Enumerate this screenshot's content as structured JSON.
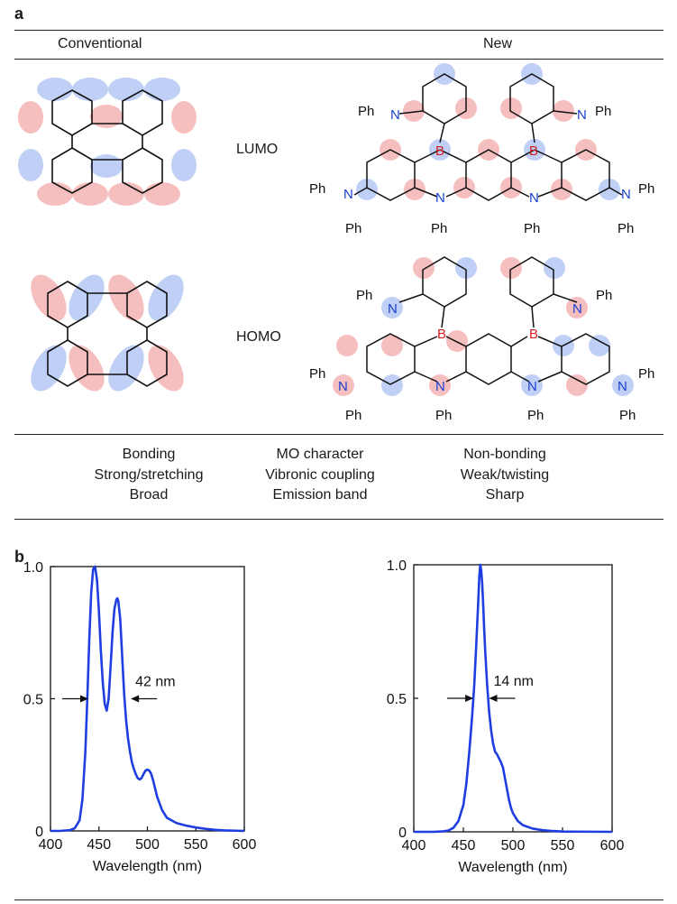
{
  "panel_a": {
    "letter": "a",
    "header_left": "Conventional",
    "header_right": "New",
    "lumo_label": "LUMO",
    "homo_label": "HOMO",
    "atoms": {
      "N": "N",
      "B": "B",
      "Ph": "Ph"
    },
    "conventional_props": [
      "Bonding",
      "Strong/stretching",
      "Broad"
    ],
    "property_names": [
      "MO character",
      "Vibronic coupling",
      "Emission band"
    ],
    "new_props": [
      "Non-bonding",
      "Weak/twisting",
      "Sharp"
    ],
    "colors": {
      "positive_lobe": "#e06666",
      "negative_lobe": "#6c8ee8",
      "boron": "#d62020",
      "nitrogen": "#1a3fd0"
    }
  },
  "panel_b": {
    "letter": "b"
  },
  "chart_data": [
    {
      "type": "line",
      "xlabel": "Wavelength (nm)",
      "xlim": [
        400,
        600
      ],
      "ylim": [
        0,
        1.0
      ],
      "xticks": [
        "400",
        "450",
        "500",
        "550",
        "600"
      ],
      "yticks": [
        "0",
        "0.5",
        "1.0"
      ],
      "annotation": "42 nm",
      "fwhm_markers": [
        440,
        482
      ],
      "color": "#1e3ee0",
      "x": [
        400,
        410,
        420,
        425,
        430,
        433,
        436,
        438,
        440,
        442,
        444,
        446,
        448,
        450,
        452,
        454,
        456,
        458,
        460,
        462,
        464,
        466,
        468,
        469,
        470,
        472,
        474,
        476,
        478,
        480,
        482,
        484,
        486,
        488,
        490,
        492,
        494,
        496,
        498,
        500,
        502,
        504,
        506,
        508,
        510,
        515,
        520,
        530,
        540,
        550,
        560,
        570,
        580,
        600
      ],
      "values": [
        0,
        0,
        0.003,
        0.01,
        0.04,
        0.12,
        0.3,
        0.5,
        0.72,
        0.9,
        0.99,
        1.0,
        0.95,
        0.83,
        0.68,
        0.56,
        0.48,
        0.455,
        0.5,
        0.62,
        0.75,
        0.84,
        0.875,
        0.88,
        0.87,
        0.8,
        0.66,
        0.52,
        0.42,
        0.35,
        0.3,
        0.26,
        0.235,
        0.215,
        0.2,
        0.195,
        0.2,
        0.215,
        0.228,
        0.232,
        0.228,
        0.215,
        0.19,
        0.16,
        0.13,
        0.08,
        0.05,
        0.03,
        0.02,
        0.013,
        0.008,
        0.004,
        0.002,
        0
      ]
    },
    {
      "type": "line",
      "xlabel": "Wavelength (nm)",
      "xlim": [
        400,
        600
      ],
      "ylim": [
        0,
        1.0
      ],
      "xticks": [
        "400",
        "450",
        "500",
        "550",
        "600"
      ],
      "yticks": [
        "0",
        "0.5",
        "1.0"
      ],
      "annotation": "14 nm",
      "fwhm_markers": [
        461,
        475
      ],
      "color": "#1e3ee0",
      "x": [
        400,
        420,
        430,
        435,
        440,
        445,
        450,
        453,
        456,
        459,
        461,
        463,
        465,
        466,
        467,
        468,
        469,
        470,
        471,
        472,
        474,
        476,
        478,
        480,
        482,
        484,
        486,
        488,
        490,
        492,
        494,
        496,
        498,
        500,
        505,
        510,
        520,
        530,
        540,
        550,
        600
      ],
      "values": [
        0,
        0,
        0.002,
        0.005,
        0.015,
        0.04,
        0.1,
        0.18,
        0.3,
        0.44,
        0.55,
        0.7,
        0.86,
        0.95,
        1.0,
        0.98,
        0.93,
        0.85,
        0.76,
        0.68,
        0.55,
        0.45,
        0.38,
        0.33,
        0.3,
        0.29,
        0.275,
        0.26,
        0.24,
        0.2,
        0.16,
        0.12,
        0.09,
        0.07,
        0.04,
        0.025,
        0.012,
        0.006,
        0.003,
        0.001,
        0
      ]
    }
  ]
}
